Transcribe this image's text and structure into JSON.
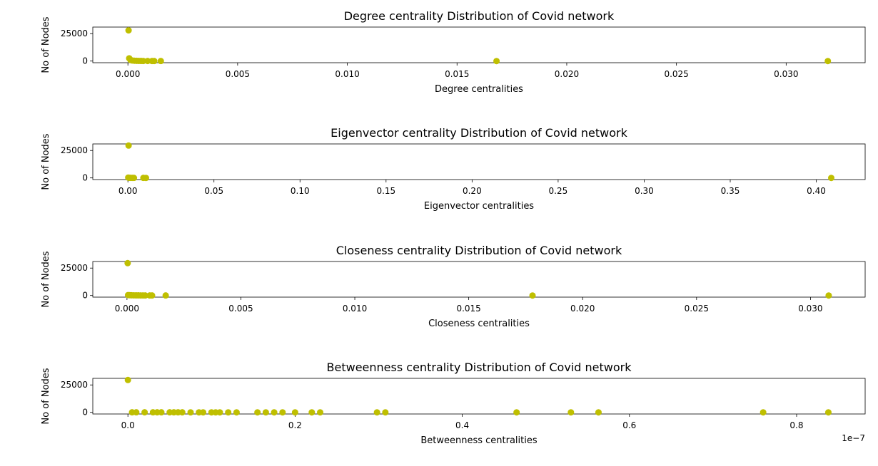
{
  "chart_data": [
    {
      "type": "scatter",
      "title": "Degree centrality Distribution of Covid network",
      "xlabel": "Degree centralities",
      "ylabel": "No of Nodes",
      "xlim": [
        -0.0016,
        0.0336
      ],
      "ylim": [
        -1500,
        31000
      ],
      "xticks": [
        0.0,
        0.005,
        0.01,
        0.015,
        0.02,
        0.025,
        0.03
      ],
      "xtick_labels": [
        "0.000",
        "0.005",
        "0.010",
        "0.015",
        "0.020",
        "0.025",
        "0.030"
      ],
      "yticks": [
        0,
        25000
      ],
      "ytick_labels": [
        "0",
        "25000"
      ],
      "x_offset_label": "",
      "color": "#bfbf00",
      "points": [
        [
          3e-05,
          28000
        ],
        [
          6e-05,
          2500
        ],
        [
          0.00012,
          900
        ],
        [
          0.0002,
          500
        ],
        [
          0.0003,
          300
        ],
        [
          0.0004,
          200
        ],
        [
          0.0005,
          150
        ],
        [
          0.0006,
          100
        ],
        [
          0.0007,
          80
        ],
        [
          0.0009,
          50
        ],
        [
          0.0011,
          30
        ],
        [
          0.0012,
          20
        ],
        [
          0.0015,
          10
        ],
        [
          0.0168,
          1
        ],
        [
          0.0319,
          1
        ]
      ]
    },
    {
      "type": "scatter",
      "title": "Eigenvector centrality Distribution of Covid network",
      "xlabel": "Eigenvector centralities",
      "ylabel": "No of Nodes",
      "xlim": [
        -0.0204,
        0.4284
      ],
      "ylim": [
        -1500,
        31000
      ],
      "xticks": [
        0.0,
        0.05,
        0.1,
        0.15,
        0.2,
        0.25,
        0.3,
        0.35,
        0.4
      ],
      "xtick_labels": [
        "0.00",
        "0.05",
        "0.10",
        "0.15",
        "0.20",
        "0.25",
        "0.30",
        "0.35",
        "0.40"
      ],
      "yticks": [
        0,
        25000
      ],
      "ytick_labels": [
        "0",
        "25000"
      ],
      "x_offset_label": "",
      "color": "#bfbf00",
      "points": [
        [
          0.0004,
          29500
        ],
        [
          0.0002,
          300
        ],
        [
          0.0008,
          150
        ],
        [
          0.0015,
          80
        ],
        [
          0.0025,
          40
        ],
        [
          0.0035,
          20
        ],
        [
          0.009,
          5
        ],
        [
          0.0105,
          3
        ],
        [
          0.4087,
          1
        ]
      ]
    },
    {
      "type": "scatter",
      "title": "Closeness centrality Distribution of Covid network",
      "xlabel": "Closeness centralities",
      "ylabel": "No of Nodes",
      "xlim": [
        -0.0015,
        0.0324
      ],
      "ylim": [
        -1500,
        31000
      ],
      "xticks": [
        0.0,
        0.005,
        0.01,
        0.015,
        0.02,
        0.025,
        0.03
      ],
      "xtick_labels": [
        "0.000",
        "0.005",
        "0.010",
        "0.015",
        "0.020",
        "0.025",
        "0.030"
      ],
      "yticks": [
        0,
        25000
      ],
      "ytick_labels": [
        "0",
        "25000"
      ],
      "x_offset_label": "",
      "color": "#bfbf00",
      "points": [
        [
          3e-05,
          29500
        ],
        [
          5e-05,
          400
        ],
        [
          0.00012,
          250
        ],
        [
          0.0002,
          200
        ],
        [
          0.0003,
          150
        ],
        [
          0.0004,
          120
        ],
        [
          0.0005,
          100
        ],
        [
          0.0006,
          80
        ],
        [
          0.0007,
          60
        ],
        [
          0.0008,
          40
        ],
        [
          0.001,
          30
        ],
        [
          0.0011,
          20
        ],
        [
          0.0017,
          5
        ],
        [
          0.0178,
          1
        ],
        [
          0.0308,
          1
        ]
      ]
    },
    {
      "type": "scatter",
      "title": "Betweenness centrality Distribution of Covid network",
      "xlabel": "Betweenness centralities",
      "ylabel": "No of Nodes",
      "xlim": [
        -4.2e-09,
        8.82e-08
      ],
      "ylim": [
        -1500,
        31000
      ],
      "xticks": [
        0.0,
        2e-08,
        4e-08,
        6e-08,
        8e-08
      ],
      "xtick_labels": [
        "0.0",
        "0.2",
        "0.4",
        "0.6",
        "0.8"
      ],
      "yticks": [
        0,
        25000
      ],
      "ytick_labels": [
        "0",
        "25000"
      ],
      "x_offset_label": "1e−7",
      "color": "#bfbf00",
      "points": [
        [
          0.0,
          29500
        ],
        [
          5e-10,
          20
        ],
        [
          1e-09,
          15
        ],
        [
          2e-09,
          12
        ],
        [
          3e-09,
          10
        ],
        [
          3.5e-09,
          8
        ],
        [
          4e-09,
          6
        ],
        [
          5e-09,
          5
        ],
        [
          5.5e-09,
          5
        ],
        [
          6e-09,
          4
        ],
        [
          6.5e-09,
          4
        ],
        [
          7.5e-09,
          3
        ],
        [
          8.5e-09,
          3
        ],
        [
          9e-09,
          3
        ],
        [
          1e-08,
          2
        ],
        [
          1.05e-08,
          2
        ],
        [
          1.1e-08,
          2
        ],
        [
          1.2e-08,
          2
        ],
        [
          1.3e-08,
          2
        ],
        [
          1.55e-08,
          2
        ],
        [
          1.65e-08,
          2
        ],
        [
          1.75e-08,
          1
        ],
        [
          1.85e-08,
          1
        ],
        [
          2e-08,
          1
        ],
        [
          2.2e-08,
          1
        ],
        [
          2.3e-08,
          1
        ],
        [
          2.98e-08,
          1
        ],
        [
          3.08e-08,
          1
        ],
        [
          4.65e-08,
          1
        ],
        [
          5.3e-08,
          1
        ],
        [
          5.63e-08,
          1
        ],
        [
          7.6e-08,
          1
        ],
        [
          8.38e-08,
          1
        ]
      ]
    }
  ]
}
